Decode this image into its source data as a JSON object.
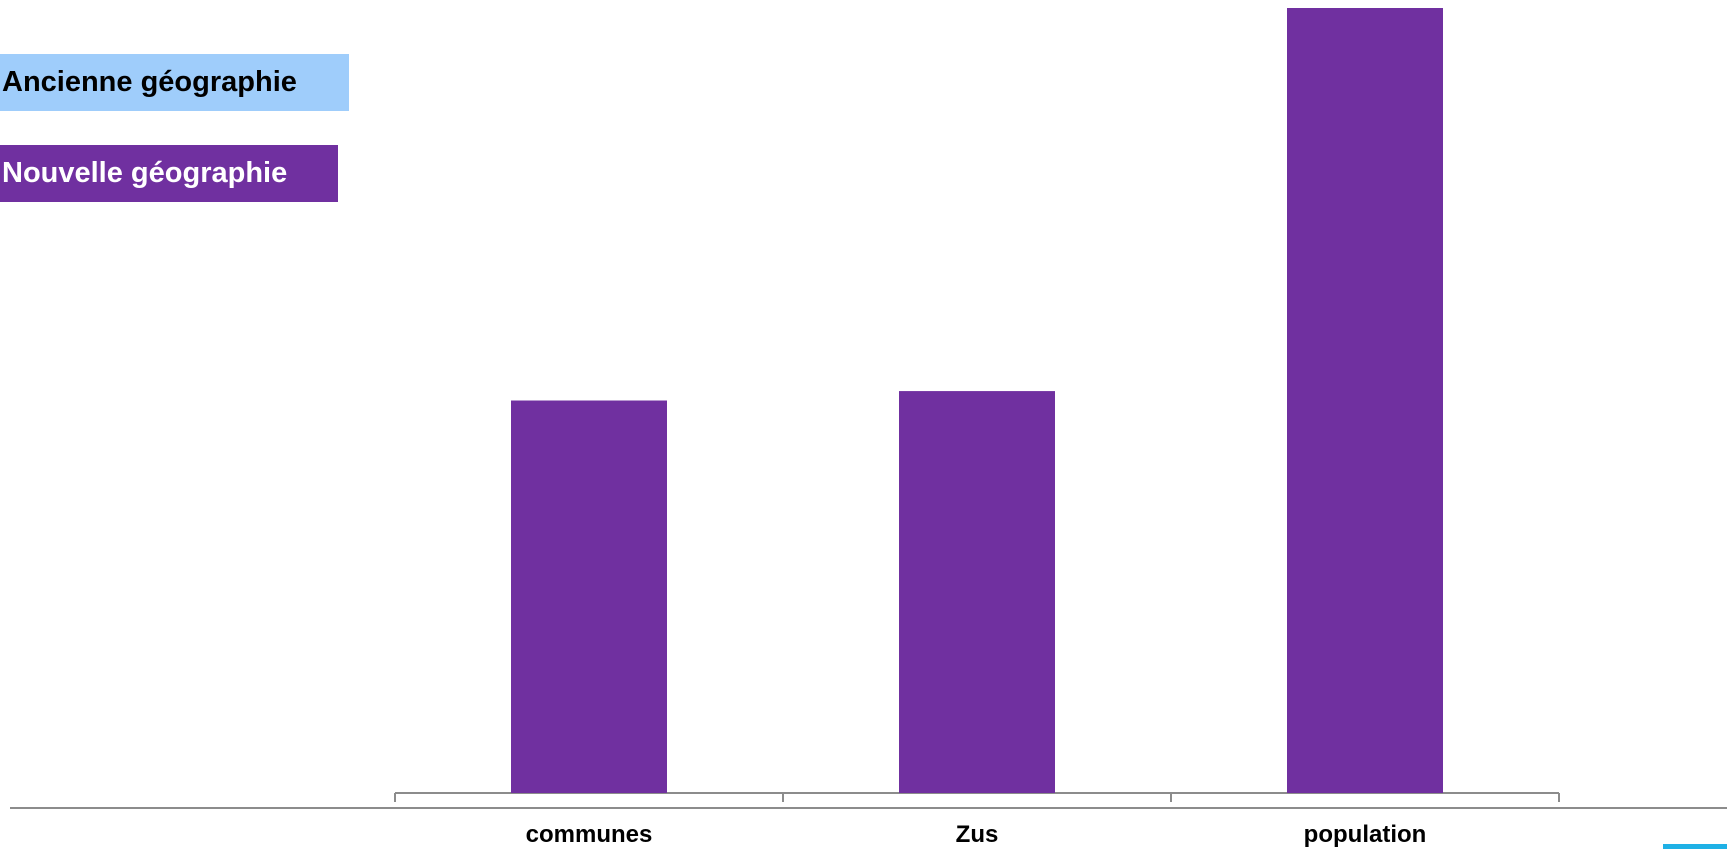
{
  "legend": {
    "old_label": "Ancienne géographie",
    "new_label": "Nouvelle géographie"
  },
  "colors": {
    "old_series": "#9fcdfb",
    "new_series": "#7030a0",
    "axis": "#8c8c8c",
    "accent_mark": "#1fb1e6"
  },
  "chart_data": {
    "type": "bar",
    "categories": [
      "communes",
      "Zus",
      "population"
    ],
    "series": [
      {
        "name": "Nouvelle géographie",
        "values": [
          50,
          51.2,
          100
        ]
      }
    ],
    "ylim": [
      0,
      100
    ],
    "grid": false,
    "legend_position": "top-left"
  }
}
